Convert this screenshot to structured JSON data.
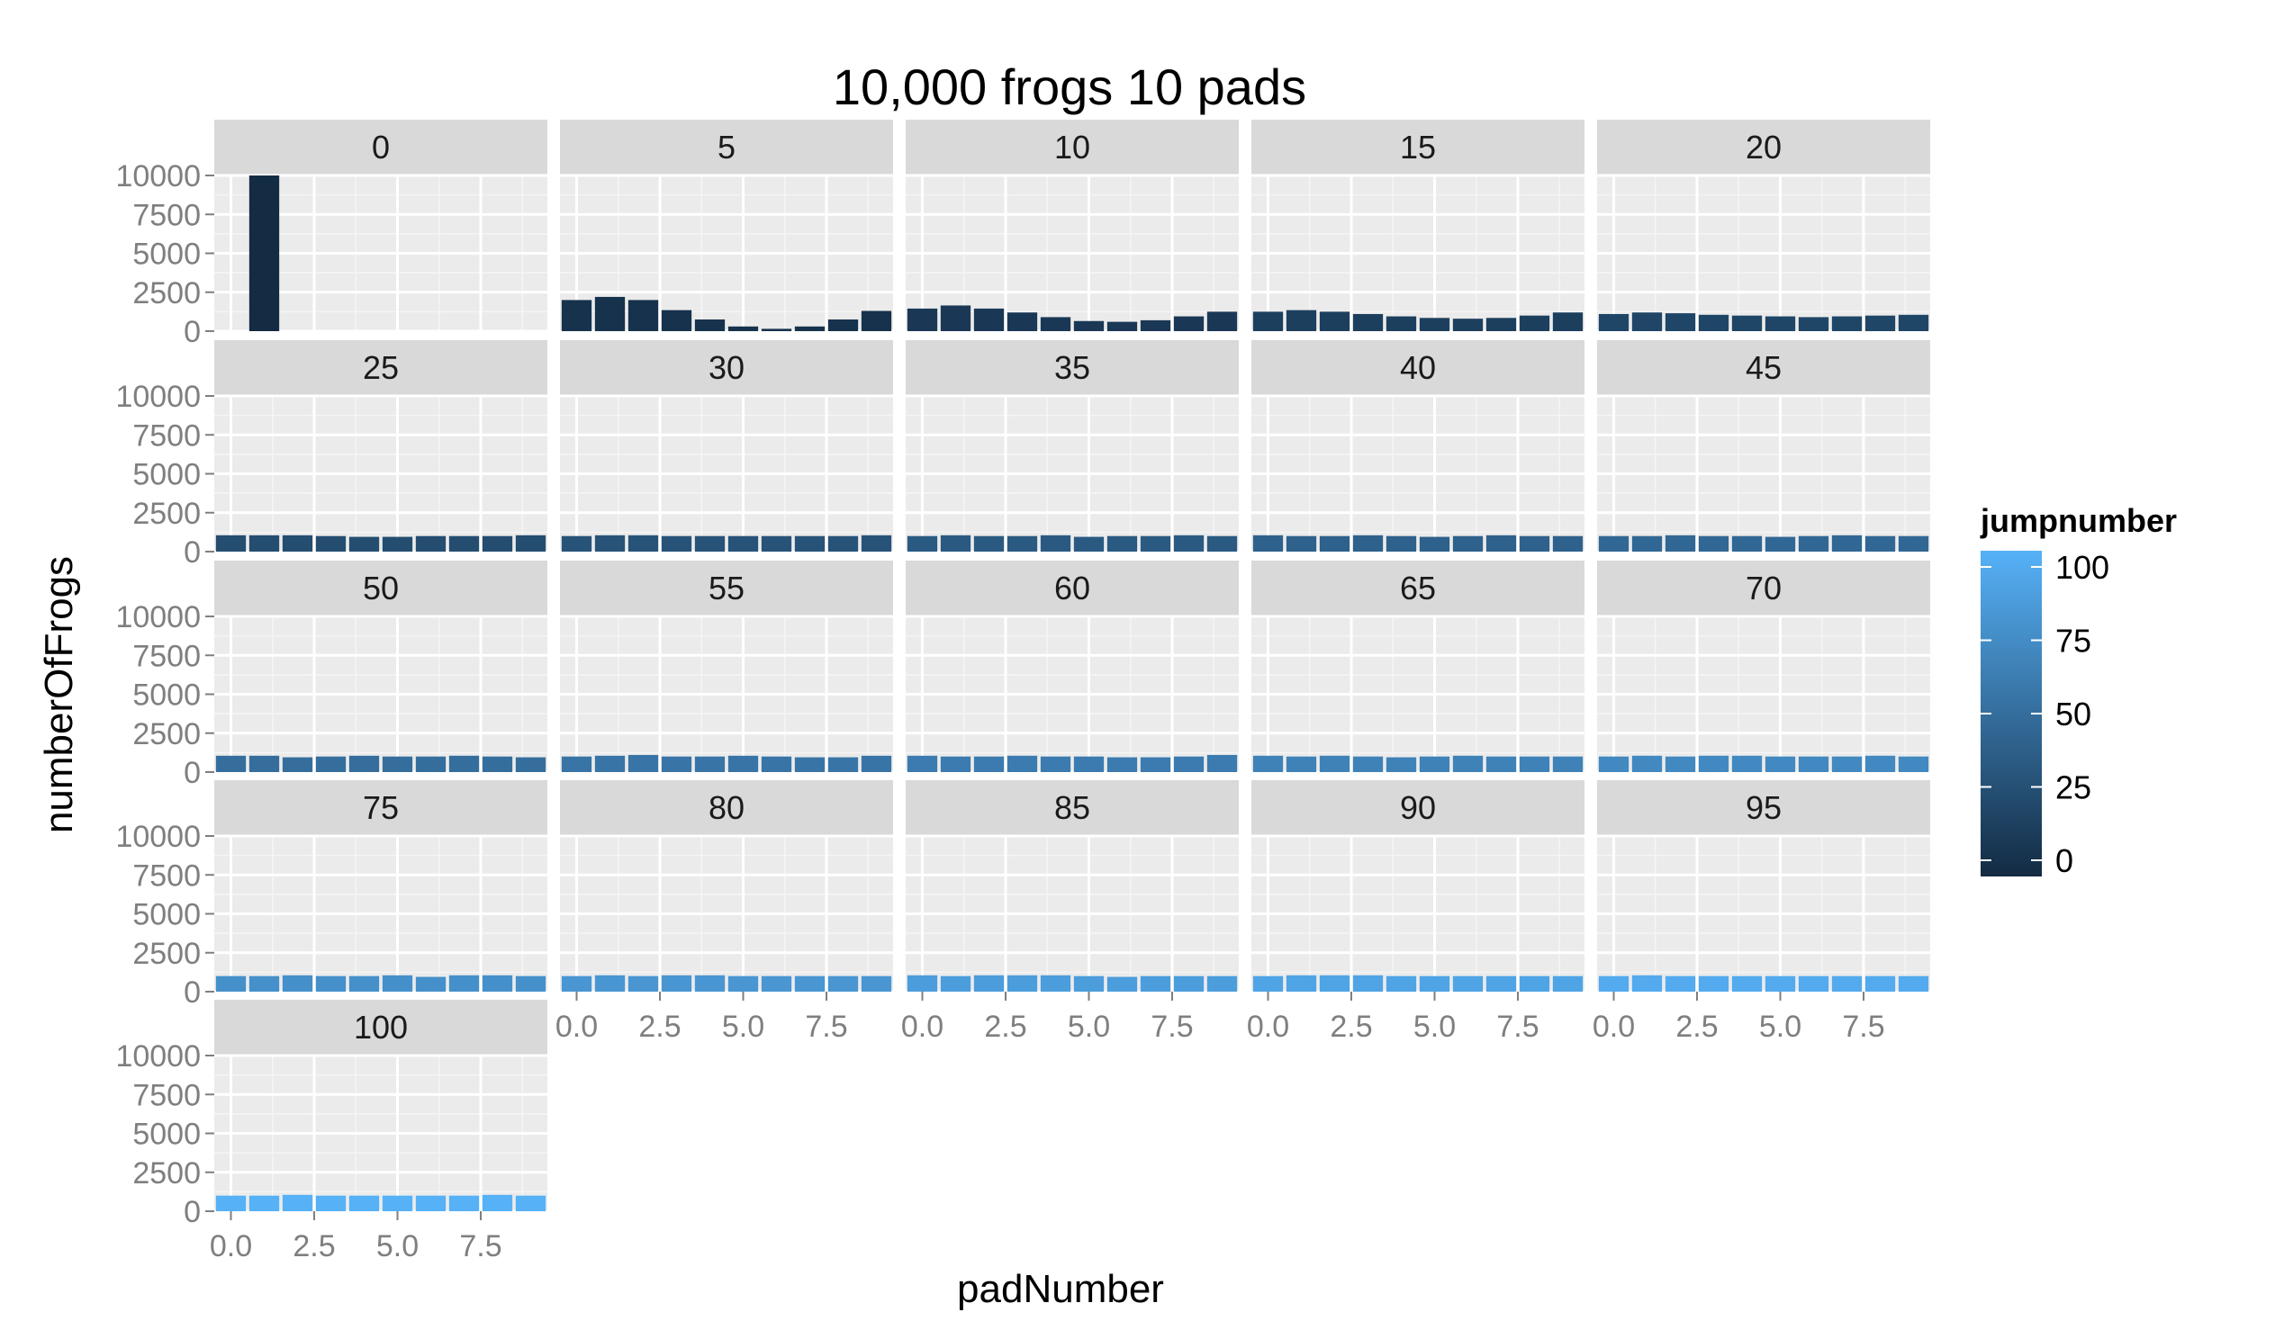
{
  "chart_data": {
    "type": "bar",
    "title": "10,000 frogs 10 pads",
    "xlabel": "padNumber",
    "ylabel": "numberOfFrogs",
    "x_ticks": [
      "0.0",
      "2.5",
      "5.0",
      "7.5"
    ],
    "y_ticks": [
      "0",
      "2500",
      "5000",
      "7500",
      "10000"
    ],
    "xlim": [
      -0.5,
      9.5
    ],
    "ylim": [
      0,
      10000
    ],
    "grid": true,
    "facet_by": "jumpnumber",
    "facet_columns": 5,
    "legend": {
      "title": "jumpnumber",
      "position": "right",
      "type": "colorbar",
      "ticks": [
        "0",
        "25",
        "50",
        "75",
        "100"
      ],
      "range": [
        0,
        100
      ],
      "color_low": "#132B43",
      "color_high": "#56B1F7"
    },
    "x": [
      0,
      1,
      2,
      3,
      4,
      5,
      6,
      7,
      8,
      9
    ],
    "panels": [
      {
        "label": "0",
        "jumpnumber": 0,
        "values": [
          0,
          10000,
          0,
          0,
          0,
          0,
          0,
          0,
          0,
          0
        ]
      },
      {
        "label": "5",
        "jumpnumber": 5,
        "values": [
          2000,
          2200,
          2000,
          1350,
          750,
          300,
          150,
          300,
          750,
          1300
        ]
      },
      {
        "label": "10",
        "jumpnumber": 10,
        "values": [
          1450,
          1650,
          1450,
          1200,
          900,
          650,
          600,
          700,
          950,
          1250
        ]
      },
      {
        "label": "15",
        "jumpnumber": 15,
        "values": [
          1250,
          1350,
          1250,
          1100,
          950,
          850,
          800,
          850,
          1000,
          1200
        ]
      },
      {
        "label": "20",
        "jumpnumber": 20,
        "values": [
          1100,
          1200,
          1150,
          1050,
          1000,
          950,
          900,
          950,
          1000,
          1050
        ]
      },
      {
        "label": "25",
        "jumpnumber": 25,
        "values": [
          1050,
          1050,
          1050,
          1000,
          950,
          950,
          1000,
          1000,
          1000,
          1050
        ]
      },
      {
        "label": "30",
        "jumpnumber": 30,
        "values": [
          1000,
          1050,
          1050,
          1000,
          1000,
          1000,
          1000,
          1000,
          1000,
          1050
        ]
      },
      {
        "label": "35",
        "jumpnumber": 35,
        "values": [
          1000,
          1050,
          1000,
          1000,
          1050,
          950,
          1000,
          1000,
          1050,
          1000
        ]
      },
      {
        "label": "40",
        "jumpnumber": 40,
        "values": [
          1050,
          1000,
          1000,
          1050,
          1000,
          950,
          1000,
          1050,
          1000,
          1000
        ]
      },
      {
        "label": "45",
        "jumpnumber": 45,
        "values": [
          1000,
          1000,
          1050,
          1000,
          1000,
          950,
          1000,
          1050,
          1000,
          1000
        ]
      },
      {
        "label": "50",
        "jumpnumber": 50,
        "values": [
          1050,
          1050,
          950,
          1000,
          1050,
          1000,
          1000,
          1050,
          1000,
          950
        ]
      },
      {
        "label": "55",
        "jumpnumber": 55,
        "values": [
          1000,
          1050,
          1100,
          1000,
          1000,
          1050,
          1000,
          950,
          950,
          1050
        ]
      },
      {
        "label": "60",
        "jumpnumber": 60,
        "values": [
          1050,
          1000,
          1000,
          1050,
          1000,
          1000,
          950,
          950,
          1000,
          1100
        ]
      },
      {
        "label": "65",
        "jumpnumber": 65,
        "values": [
          1050,
          1000,
          1050,
          1000,
          950,
          1000,
          1050,
          1000,
          1000,
          1000
        ]
      },
      {
        "label": "70",
        "jumpnumber": 70,
        "values": [
          1000,
          1050,
          1000,
          1050,
          1050,
          1000,
          1000,
          1000,
          1050,
          1000
        ]
      },
      {
        "label": "75",
        "jumpnumber": 75,
        "values": [
          1000,
          1000,
          1050,
          1000,
          1000,
          1050,
          950,
          1050,
          1050,
          1000
        ]
      },
      {
        "label": "80",
        "jumpnumber": 80,
        "values": [
          1000,
          1050,
          1000,
          1050,
          1050,
          1000,
          1000,
          1000,
          1000,
          1000
        ]
      },
      {
        "label": "85",
        "jumpnumber": 85,
        "values": [
          1050,
          1000,
          1050,
          1050,
          1050,
          1000,
          950,
          1000,
          1000,
          1000
        ]
      },
      {
        "label": "90",
        "jumpnumber": 90,
        "values": [
          1000,
          1050,
          1050,
          1050,
          1000,
          1000,
          1000,
          1000,
          1000,
          1000
        ]
      },
      {
        "label": "95",
        "jumpnumber": 95,
        "values": [
          1000,
          1050,
          1000,
          1000,
          1000,
          1000,
          1000,
          1000,
          1000,
          1000
        ]
      },
      {
        "label": "100",
        "jumpnumber": 100,
        "values": [
          1000,
          1000,
          1050,
          1000,
          1000,
          1000,
          1000,
          1000,
          1050,
          1000
        ]
      }
    ]
  }
}
